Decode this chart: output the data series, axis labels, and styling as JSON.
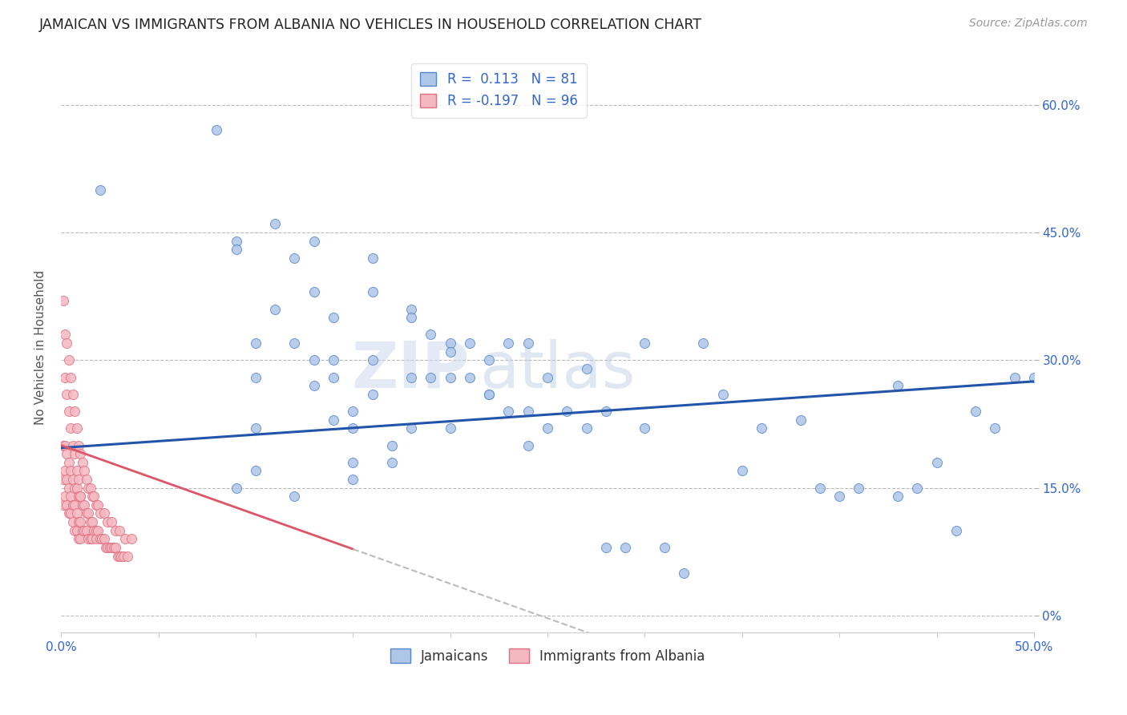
{
  "title": "JAMAICAN VS IMMIGRANTS FROM ALBANIA NO VEHICLES IN HOUSEHOLD CORRELATION CHART",
  "source": "Source: ZipAtlas.com",
  "ylabel": "No Vehicles in Household",
  "ytick_vals": [
    0.0,
    0.15,
    0.3,
    0.45,
    0.6
  ],
  "ytick_labels": [
    "0%",
    "15.0%",
    "30.0%",
    "45.0%",
    "60.0%"
  ],
  "xtick_vals": [
    0.0,
    0.05,
    0.1,
    0.15,
    0.2,
    0.25,
    0.3,
    0.35,
    0.4,
    0.45,
    0.5
  ],
  "xtick_labels": [
    "0.0%",
    "",
    "",
    "",
    "",
    "",
    "",
    "",
    "",
    "",
    "50.0%"
  ],
  "xlim": [
    0.0,
    0.5
  ],
  "ylim": [
    -0.02,
    0.65
  ],
  "r_jamaican": 0.113,
  "n_jamaican": 81,
  "r_albania": -0.197,
  "n_albania": 96,
  "color_jamaican": "#aec6e8",
  "color_albania": "#f4b8c1",
  "edge_color_jamaican": "#5588cc",
  "edge_color_albania": "#e07080",
  "line_color_jamaican": "#2255aa",
  "line_color_albania": "#dd5566",
  "line_color_dashed": "#bbbbbb",
  "watermark_zip": "ZIP",
  "watermark_atlas": "atlas",
  "legend_label_jamaican": "Jamaicans",
  "legend_label_albania": "Immigrants from Albania",
  "jamaican_x": [
    0.02,
    0.08,
    0.09,
    0.09,
    0.09,
    0.1,
    0.1,
    0.1,
    0.1,
    0.11,
    0.11,
    0.12,
    0.12,
    0.12,
    0.13,
    0.13,
    0.13,
    0.14,
    0.14,
    0.14,
    0.14,
    0.15,
    0.15,
    0.15,
    0.15,
    0.16,
    0.16,
    0.16,
    0.17,
    0.17,
    0.18,
    0.18,
    0.18,
    0.19,
    0.19,
    0.2,
    0.2,
    0.2,
    0.21,
    0.21,
    0.22,
    0.22,
    0.23,
    0.23,
    0.24,
    0.24,
    0.25,
    0.25,
    0.26,
    0.27,
    0.28,
    0.28,
    0.29,
    0.3,
    0.31,
    0.32,
    0.33,
    0.35,
    0.36,
    0.38,
    0.39,
    0.4,
    0.41,
    0.43,
    0.44,
    0.45,
    0.47,
    0.48,
    0.49,
    0.5,
    0.13,
    0.16,
    0.18,
    0.2,
    0.22,
    0.24,
    0.27,
    0.3,
    0.34,
    0.43,
    0.46
  ],
  "jamaican_y": [
    0.5,
    0.57,
    0.44,
    0.43,
    0.15,
    0.32,
    0.28,
    0.22,
    0.17,
    0.46,
    0.36,
    0.42,
    0.32,
    0.14,
    0.38,
    0.3,
    0.27,
    0.3,
    0.23,
    0.35,
    0.28,
    0.24,
    0.22,
    0.18,
    0.16,
    0.42,
    0.3,
    0.26,
    0.2,
    0.18,
    0.36,
    0.28,
    0.22,
    0.33,
    0.28,
    0.32,
    0.28,
    0.22,
    0.32,
    0.28,
    0.3,
    0.26,
    0.32,
    0.24,
    0.32,
    0.24,
    0.28,
    0.22,
    0.24,
    0.22,
    0.24,
    0.08,
    0.08,
    0.32,
    0.08,
    0.05,
    0.32,
    0.17,
    0.22,
    0.23,
    0.15,
    0.14,
    0.15,
    0.14,
    0.15,
    0.18,
    0.24,
    0.22,
    0.28,
    0.28,
    0.44,
    0.38,
    0.35,
    0.31,
    0.26,
    0.2,
    0.29,
    0.22,
    0.26,
    0.27,
    0.1
  ],
  "albania_x": [
    0.001,
    0.001,
    0.001,
    0.002,
    0.002,
    0.002,
    0.003,
    0.003,
    0.003,
    0.004,
    0.004,
    0.004,
    0.005,
    0.005,
    0.005,
    0.006,
    0.006,
    0.006,
    0.007,
    0.007,
    0.007,
    0.008,
    0.008,
    0.008,
    0.009,
    0.009,
    0.009,
    0.01,
    0.01,
    0.01,
    0.011,
    0.011,
    0.012,
    0.012,
    0.013,
    0.013,
    0.014,
    0.014,
    0.015,
    0.015,
    0.016,
    0.016,
    0.017,
    0.018,
    0.018,
    0.019,
    0.02,
    0.021,
    0.022,
    0.023,
    0.024,
    0.025,
    0.026,
    0.027,
    0.028,
    0.029,
    0.03,
    0.031,
    0.032,
    0.034,
    0.001,
    0.002,
    0.002,
    0.003,
    0.003,
    0.004,
    0.004,
    0.005,
    0.005,
    0.006,
    0.006,
    0.007,
    0.007,
    0.008,
    0.008,
    0.009,
    0.009,
    0.01,
    0.01,
    0.011,
    0.012,
    0.013,
    0.014,
    0.015,
    0.016,
    0.017,
    0.018,
    0.019,
    0.02,
    0.022,
    0.024,
    0.026,
    0.028,
    0.03,
    0.033,
    0.036
  ],
  "albania_y": [
    0.2,
    0.16,
    0.13,
    0.2,
    0.17,
    0.14,
    0.19,
    0.16,
    0.13,
    0.18,
    0.15,
    0.12,
    0.17,
    0.14,
    0.12,
    0.16,
    0.13,
    0.11,
    0.15,
    0.13,
    0.1,
    0.15,
    0.12,
    0.1,
    0.14,
    0.11,
    0.09,
    0.14,
    0.11,
    0.09,
    0.13,
    0.1,
    0.13,
    0.1,
    0.12,
    0.1,
    0.12,
    0.09,
    0.11,
    0.09,
    0.11,
    0.09,
    0.1,
    0.1,
    0.09,
    0.1,
    0.09,
    0.09,
    0.09,
    0.08,
    0.08,
    0.08,
    0.08,
    0.08,
    0.08,
    0.07,
    0.07,
    0.07,
    0.07,
    0.07,
    0.37,
    0.33,
    0.28,
    0.32,
    0.26,
    0.3,
    0.24,
    0.28,
    0.22,
    0.26,
    0.2,
    0.24,
    0.19,
    0.22,
    0.17,
    0.2,
    0.16,
    0.19,
    0.14,
    0.18,
    0.17,
    0.16,
    0.15,
    0.15,
    0.14,
    0.14,
    0.13,
    0.13,
    0.12,
    0.12,
    0.11,
    0.11,
    0.1,
    0.1,
    0.09,
    0.09
  ]
}
